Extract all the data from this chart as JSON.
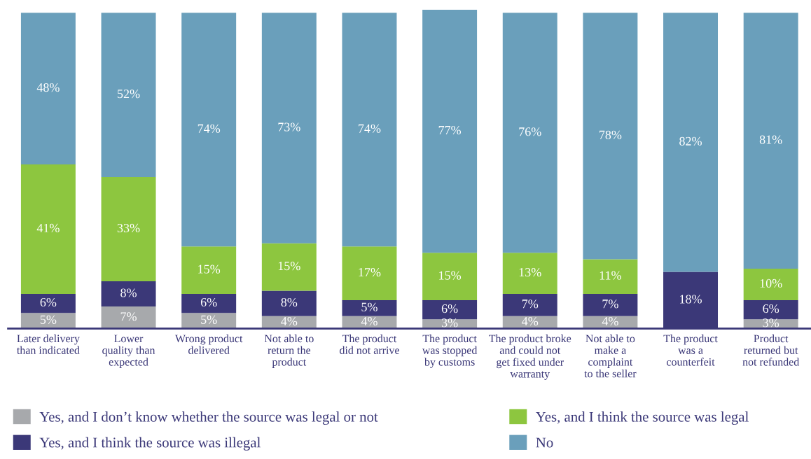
{
  "chart_data": {
    "type": "bar",
    "stacked": true,
    "legend": "bottom",
    "grid": false,
    "categories": [
      "Later delivery\nthan indicated",
      "Lower\nquality than\nexpected",
      "Wrong product\ndelivered",
      "Not able to\nreturn the\nproduct",
      "The product\ndid not arrive",
      "The product\nwas stopped\nby customs",
      "The product broke\nand could not\nget fixed under\nwarranty",
      "Not able to\nmake a\ncomplaint\nto the seller",
      "The product\nwas a\ncounterfeit",
      "Product\nreturned but\nnot refunded"
    ],
    "series": [
      {
        "name": "Yes, and I don’t know whether the source was legal or not",
        "color": "#a7a9ac",
        "values": [
          5,
          7,
          5,
          4,
          4,
          3,
          4,
          4,
          null,
          3
        ],
        "value_labels": [
          "5%",
          "7%",
          "5%",
          "4%",
          "4%",
          "3%",
          "4%",
          "4%",
          null,
          "3%"
        ]
      },
      {
        "name": "Yes, and I think the source was illegal",
        "color": "#3b3878",
        "values": [
          6,
          8,
          6,
          8,
          5,
          6,
          7,
          7,
          18,
          6
        ],
        "value_labels": [
          "6%",
          "8%",
          "6%",
          "8%",
          "5%",
          "6%",
          "7%",
          "7%",
          "18%",
          "6%"
        ]
      },
      {
        "name": "Yes, and I think the source was legal",
        "color": "#8dc63f",
        "values": [
          41,
          33,
          15,
          15,
          17,
          15,
          13,
          11,
          null,
          10
        ],
        "value_labels": [
          "41%",
          "33%",
          "15%",
          "15%",
          "17%",
          "15%",
          "13%",
          "11%",
          null,
          "10%"
        ]
      },
      {
        "name": "No",
        "color": "#6a9fbb",
        "values": [
          48,
          52,
          74,
          73,
          74,
          77,
          76,
          78,
          82,
          81
        ],
        "value_labels": [
          "48%",
          "52%",
          "74%",
          "73%",
          "74%",
          "77%",
          "76%",
          "78%",
          "82%",
          "81%"
        ]
      }
    ]
  }
}
